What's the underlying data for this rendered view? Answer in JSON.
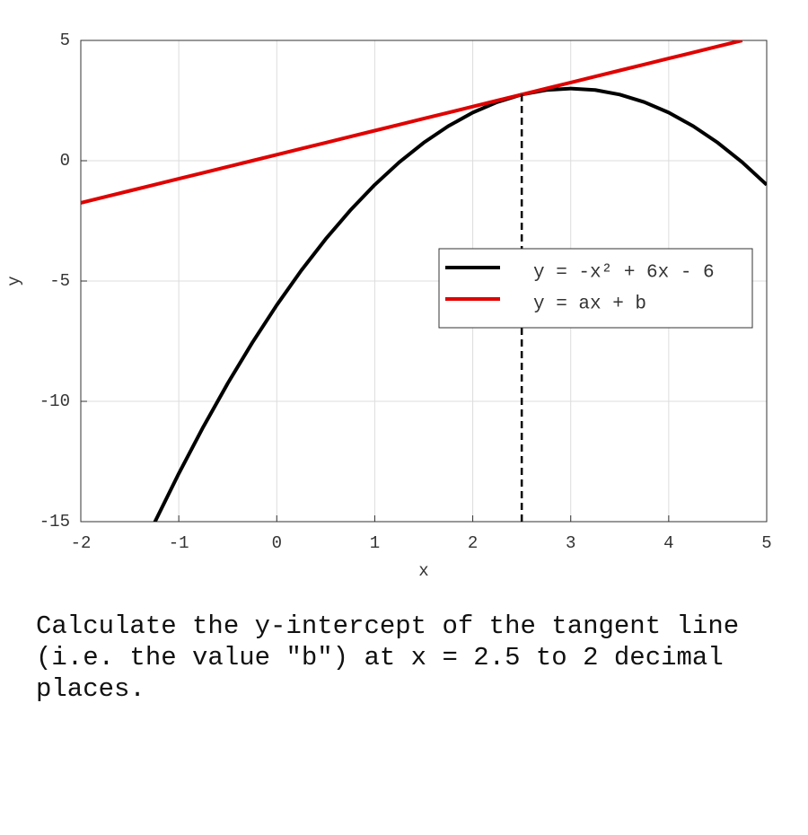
{
  "chart_data": {
    "type": "line",
    "x": [
      -2,
      -1.75,
      -1.5,
      -1.25,
      -1,
      -0.75,
      -0.5,
      -0.25,
      0,
      0.25,
      0.5,
      0.75,
      1,
      1.25,
      1.5,
      1.75,
      2,
      2.25,
      2.5,
      2.75,
      3,
      3.25,
      3.5,
      3.75,
      4,
      4.25,
      4.5,
      4.75,
      5
    ],
    "series": [
      {
        "name": "y = -x² + 6x - 6",
        "color": "#000000",
        "values": [
          null,
          null,
          null,
          -15.0625,
          -13,
          -11.0625,
          -9.25,
          -7.5625,
          -6,
          -4.5625,
          -3.25,
          -2.0625,
          -1,
          -0.0625,
          0.75,
          1.4375,
          2,
          2.4375,
          2.75,
          2.9375,
          3,
          2.9375,
          2.75,
          2.4375,
          2,
          1.4375,
          0.75,
          -0.0625,
          -1
        ]
      },
      {
        "name": "y = ax + b",
        "color": "#e00000",
        "values": [
          -1.75,
          -1.5,
          -1.25,
          -1,
          -0.75,
          -0.5,
          -0.25,
          0,
          0.25,
          0.5,
          0.75,
          1,
          1.25,
          1.5,
          1.75,
          2,
          2.25,
          2.5,
          2.75,
          3,
          3.25,
          3.5,
          3.75,
          4,
          4.25,
          4.5,
          4.75,
          5,
          null
        ]
      }
    ],
    "vline": {
      "x": 2.5,
      "y_end": 2.75
    },
    "xlabel": "x",
    "ylabel": "y",
    "xlim": [
      -2,
      5
    ],
    "xticks": [
      -2,
      -1,
      0,
      1,
      2,
      3,
      4,
      5
    ],
    "ylim": [
      -15,
      5
    ],
    "yticks": [
      -15,
      -10,
      -5,
      0,
      5
    ],
    "grid": true,
    "legend": "right"
  },
  "question": "Calculate the y-intercept of the tangent line (i.e. the value \"b\") at x = 2.5 to 2 decimal places."
}
